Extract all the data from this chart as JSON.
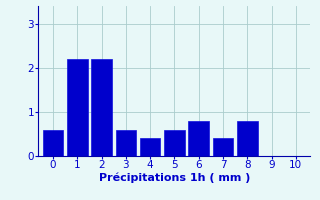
{
  "categories": [
    0,
    1,
    2,
    3,
    4,
    5,
    6,
    7,
    8,
    9,
    10
  ],
  "values": [
    0.6,
    2.2,
    2.2,
    0.6,
    0.4,
    0.6,
    0.8,
    0.4,
    0.8,
    0.0,
    0.0
  ],
  "bar_color": "#0000cc",
  "bar_edge_color": "#1111dd",
  "background_color": "#e8f8f8",
  "xlabel": "Précipitations 1h ( mm )",
  "xlabel_color": "#0000cc",
  "tick_color": "#0000cc",
  "axis_color": "#0000aa",
  "grid_color": "#aacccc",
  "ylim": [
    0,
    3.4
  ],
  "xlim": [
    -0.6,
    10.6
  ],
  "yticks": [
    0,
    1,
    2,
    3
  ],
  "xticks": [
    0,
    1,
    2,
    3,
    4,
    5,
    6,
    7,
    8,
    9,
    10
  ],
  "xlabel_fontsize": 8,
  "tick_fontsize": 7.5
}
